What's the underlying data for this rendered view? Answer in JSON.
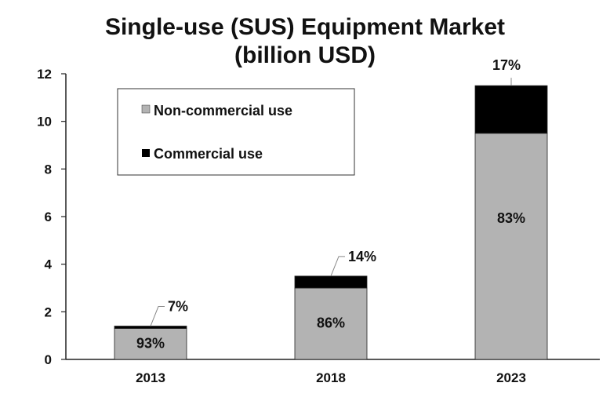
{
  "chart_data": {
    "type": "bar",
    "stacked": true,
    "title": "Single-use (SUS) Equipment Market",
    "subtitle": "(billion USD)",
    "xlabel": "",
    "ylabel": "",
    "ylim": [
      0,
      12
    ],
    "yticks": [
      "0",
      "2",
      "4",
      "6",
      "8",
      "10",
      "12"
    ],
    "categories": [
      "2013",
      "2018",
      "2023"
    ],
    "totals": [
      1.4,
      3.5,
      11.5
    ],
    "series": [
      {
        "name": "Non-commercial use",
        "color": "#b3b3b3",
        "values": [
          1.3,
          3.0,
          9.5
        ],
        "labels": [
          "93%",
          "86%",
          "83%"
        ]
      },
      {
        "name": "Commercial use",
        "color": "#000000",
        "values": [
          0.1,
          0.5,
          2.0
        ],
        "labels": [
          "7%",
          "14%",
          "17%"
        ]
      }
    ],
    "legend": "upper-left"
  }
}
